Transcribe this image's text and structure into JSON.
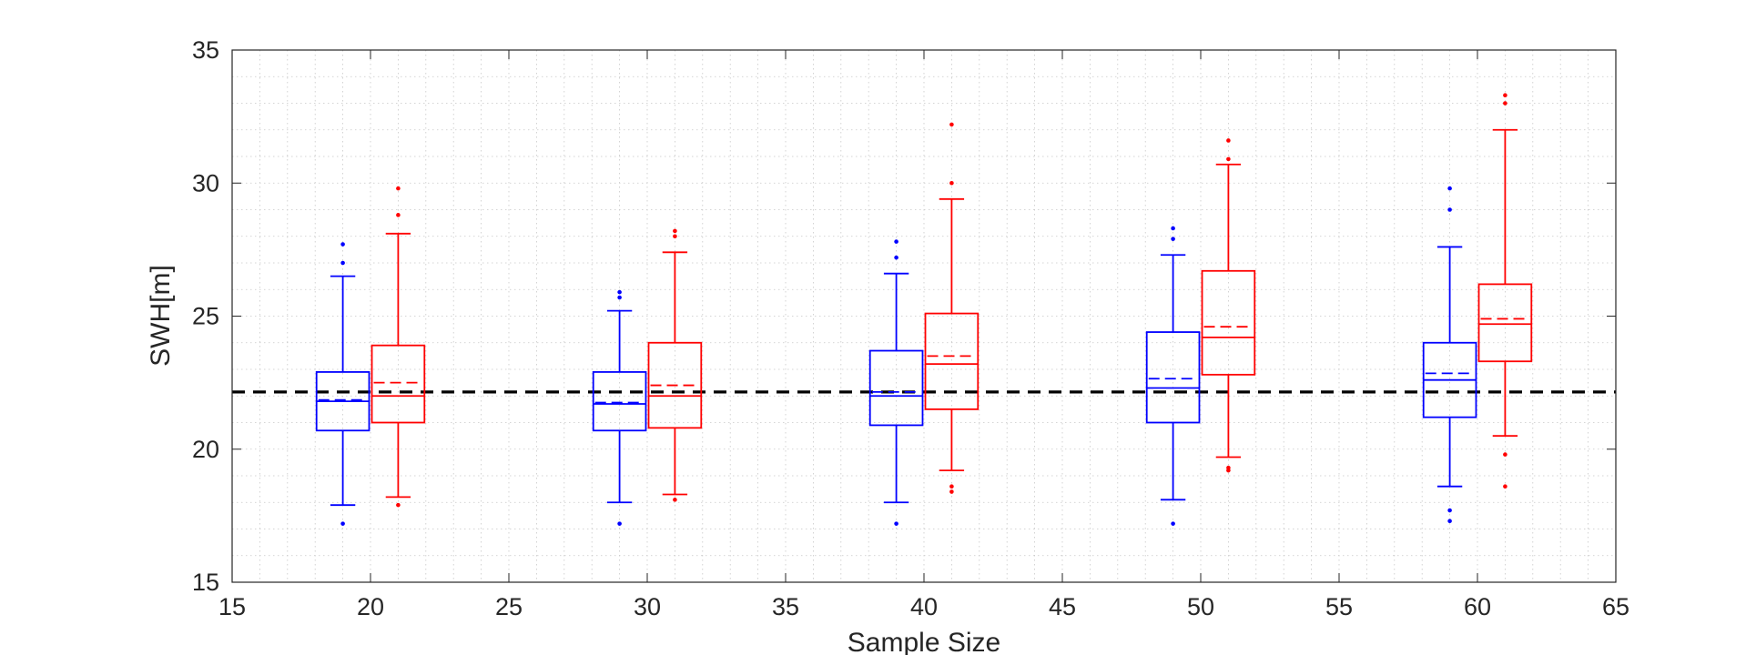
{
  "chart_data": {
    "type": "boxplot",
    "title": "",
    "xlabel": "Sample Size",
    "ylabel": "SWH[m]",
    "xlim": [
      15,
      65
    ],
    "ylim": [
      15,
      35
    ],
    "xticks": [
      15,
      20,
      25,
      30,
      35,
      40,
      45,
      50,
      55,
      60,
      65
    ],
    "yticks": [
      15,
      20,
      25,
      30,
      35
    ],
    "grid": "minor dotted",
    "reference_line": {
      "y": 22.15,
      "style": "dashed",
      "color": "#000000"
    },
    "series": [
      {
        "name": "blue",
        "color": "#0000ff",
        "boxes": [
          {
            "x": 19,
            "whisker_low": 17.9,
            "q1": 20.7,
            "median": 21.8,
            "mean": 21.85,
            "q3": 22.9,
            "whisker_high": 26.5,
            "outliers": [
              17.2,
              27.0,
              27.7
            ]
          },
          {
            "x": 29,
            "whisker_low": 18.0,
            "q1": 20.7,
            "median": 21.7,
            "mean": 21.75,
            "q3": 22.9,
            "whisker_high": 25.2,
            "outliers": [
              17.2,
              25.7,
              25.9
            ]
          },
          {
            "x": 39,
            "whisker_low": 18.0,
            "q1": 20.9,
            "median": 22.0,
            "mean": 22.15,
            "q3": 23.7,
            "whisker_high": 26.6,
            "outliers": [
              17.2,
              27.2,
              27.8
            ]
          },
          {
            "x": 49,
            "whisker_low": 18.1,
            "q1": 21.0,
            "median": 22.3,
            "mean": 22.65,
            "q3": 24.4,
            "whisker_high": 27.3,
            "outliers": [
              17.2,
              27.9,
              28.3
            ]
          },
          {
            "x": 59,
            "whisker_low": 18.6,
            "q1": 21.2,
            "median": 22.6,
            "mean": 22.85,
            "q3": 24.0,
            "whisker_high": 27.6,
            "outliers": [
              17.3,
              17.7,
              29.0,
              29.8
            ]
          }
        ]
      },
      {
        "name": "red",
        "color": "#ff0000",
        "boxes": [
          {
            "x": 21,
            "whisker_low": 18.2,
            "q1": 21.0,
            "median": 22.0,
            "mean": 22.5,
            "q3": 23.9,
            "whisker_high": 28.1,
            "outliers": [
              17.9,
              28.8,
              29.8
            ]
          },
          {
            "x": 31,
            "whisker_low": 18.3,
            "q1": 20.8,
            "median": 22.0,
            "mean": 22.4,
            "q3": 24.0,
            "whisker_high": 27.4,
            "outliers": [
              18.1,
              28.0,
              28.2
            ]
          },
          {
            "x": 41,
            "whisker_low": 19.2,
            "q1": 21.5,
            "median": 23.2,
            "mean": 23.5,
            "q3": 25.1,
            "whisker_high": 29.4,
            "outliers": [
              18.4,
              18.6,
              30.0,
              32.2
            ]
          },
          {
            "x": 51,
            "whisker_low": 19.7,
            "q1": 22.8,
            "median": 24.2,
            "mean": 24.6,
            "q3": 26.7,
            "whisker_high": 30.7,
            "outliers": [
              19.2,
              19.3,
              30.9,
              31.6
            ]
          },
          {
            "x": 61,
            "whisker_low": 20.5,
            "q1": 23.3,
            "median": 24.7,
            "mean": 24.9,
            "q3": 26.2,
            "whisker_high": 32.0,
            "outliers": [
              18.6,
              19.8,
              33.0,
              33.3
            ]
          }
        ]
      }
    ]
  }
}
